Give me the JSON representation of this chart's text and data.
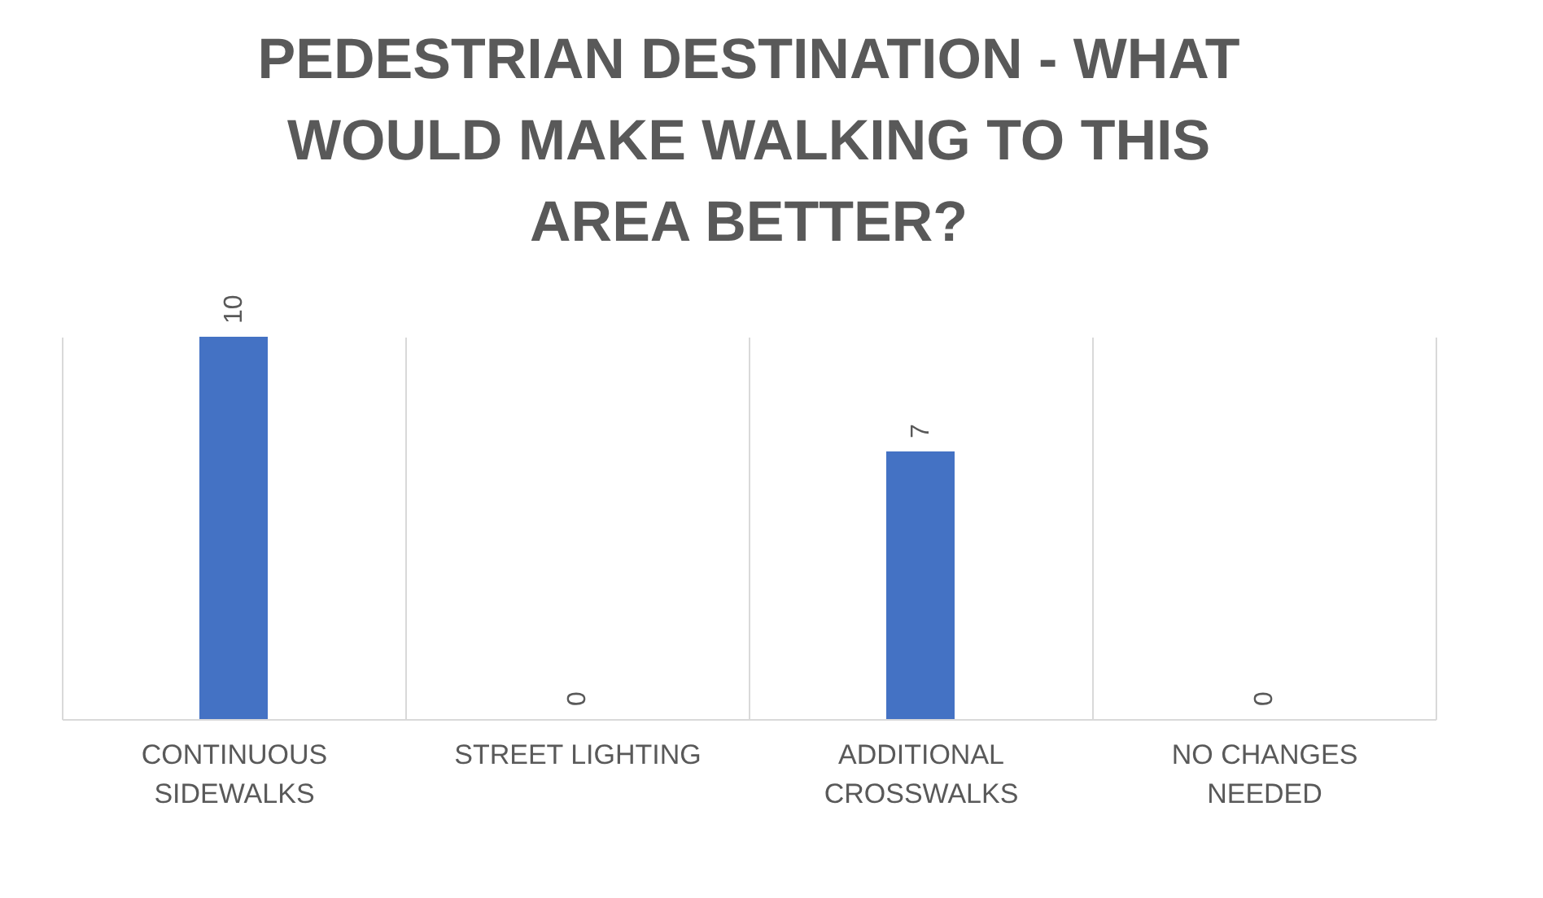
{
  "chart_data": {
    "type": "bar",
    "title": "PEDESTRIAN DESTINATION - WHAT WOULD MAKE WALKING TO THIS AREA BETTER?",
    "categories": [
      "CONTINUOUS SIDEWALKS",
      "STREET LIGHTING",
      "ADDITIONAL CROSSWALKS",
      "NO CHANGES NEEDED"
    ],
    "values": [
      10,
      0,
      7,
      0
    ],
    "color": "#4472c4",
    "data_labels": true,
    "grid": "x"
  }
}
